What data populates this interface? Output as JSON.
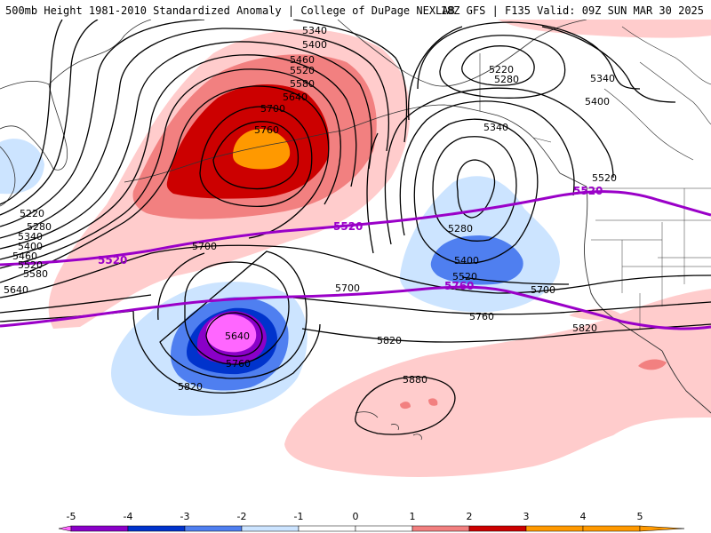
{
  "header": {
    "title": "500mb Height 1981-2010 Standardized Anomaly | College of DuPage NEXLAB",
    "run": "18Z GFS | F135 Valid: 09Z SUN MAR 30 2025"
  },
  "colors": {
    "anom_neg5": "#ff66ff",
    "anom_neg4": "#8a00c8",
    "anom_neg3": "#0033cc",
    "anom_neg2": "#4f7ff0",
    "anom_neg1": "#cce4ff",
    "anom_pos1": "#ffcccc",
    "anom_pos2": "#f28080",
    "anom_pos3": "#cc0000",
    "anom_pos4": "#ff9900",
    "contour": "#000000",
    "ref_contour": "#9a00c8",
    "coastline": "#333333"
  },
  "colorbar": {
    "ticks": [
      "-5",
      "-4",
      "-3",
      "-2",
      "-1",
      "0",
      "1",
      "2",
      "3",
      "4",
      "5"
    ]
  },
  "contour_labels": {
    "l5340a": "5340",
    "l5400a": "5400",
    "l5460a": "5460",
    "l5520a": "5520",
    "l5580a": "5580",
    "l5640a": "5640",
    "l5700a": "5700",
    "l5760a": "5760",
    "l5220w": "5220",
    "l5280w": "5280",
    "l5340w": "5340",
    "l5400w": "5400",
    "l5460w": "5460",
    "l5520w": "5520",
    "l5580w": "5580",
    "l5640w": "5640",
    "l5220g": "5220",
    "l5280g": "5280",
    "l5340g": "5340",
    "l5340e": "5340",
    "l5400e": "5400",
    "l5520e": "5520",
    "l5280t": "5280",
    "l5400t": "5400",
    "l5520t": "5520",
    "l5700m": "5700",
    "l5700c": "5700",
    "l5700r": "5700",
    "l5760c": "5760",
    "l5820c": "5820",
    "l5820r": "5820",
    "l5640l": "5640",
    "l5760l": "5760",
    "l5820l": "5820",
    "l5880": "5880"
  },
  "ref_labels": {
    "r5520w": "5520",
    "r5520c": "5520",
    "r5520e": "5520",
    "r5760c": "5760"
  }
}
